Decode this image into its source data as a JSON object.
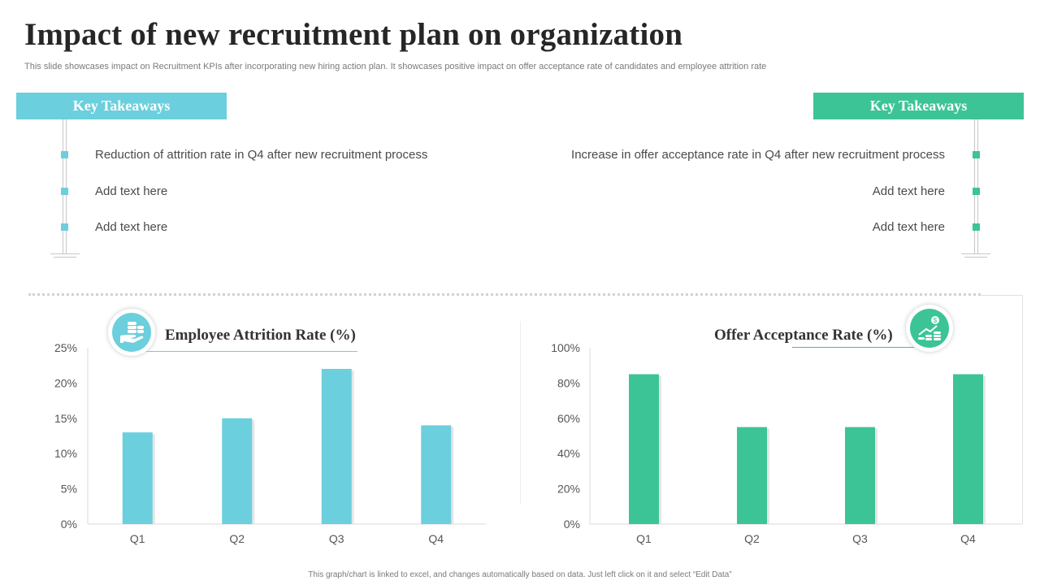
{
  "title": "Impact of new recruitment plan on organization",
  "subtitle": "This slide showcases impact on Recruitment KPIs after incorporating new hiring action plan. It showcases positive impact on offer acceptance rate of candidates and employee attrition rate",
  "colors": {
    "teal": "#6ccfdd",
    "green": "#3cc497"
  },
  "left_takeaways": {
    "header": "Key Takeaways",
    "items": [
      "Reduction of attrition rate in Q4 after new recruitment process",
      "Add text here",
      "Add text here"
    ]
  },
  "right_takeaways": {
    "header": "Key Takeaways",
    "items": [
      "Increase in offer acceptance rate in Q4 after new recruitment process",
      "Add text here",
      "Add text here"
    ]
  },
  "icons": {
    "left": "hand-coins-icon",
    "right": "coins-growth-icon"
  },
  "footer": "This graph/chart is linked to excel, and changes automatically based on data. Just left click on it and select “Edit Data”",
  "chart_data": [
    {
      "type": "bar",
      "title": "Employee Attrition Rate (%)",
      "categories": [
        "Q1",
        "Q2",
        "Q3",
        "Q4"
      ],
      "values": [
        13,
        15,
        22,
        14
      ],
      "ylim": [
        0,
        25
      ],
      "yticks": [
        "0%",
        "5%",
        "10%",
        "15%",
        "20%",
        "25%"
      ],
      "xlabel": "",
      "ylabel": "",
      "grid": false
    },
    {
      "type": "bar",
      "title": "Offer Acceptance Rate (%)",
      "categories": [
        "Q1",
        "Q2",
        "Q3",
        "Q4"
      ],
      "values": [
        85,
        55,
        55,
        85
      ],
      "ylim": [
        0,
        100
      ],
      "yticks": [
        "0%",
        "20%",
        "40%",
        "60%",
        "80%",
        "100%"
      ],
      "xlabel": "",
      "ylabel": "",
      "grid": false
    }
  ]
}
